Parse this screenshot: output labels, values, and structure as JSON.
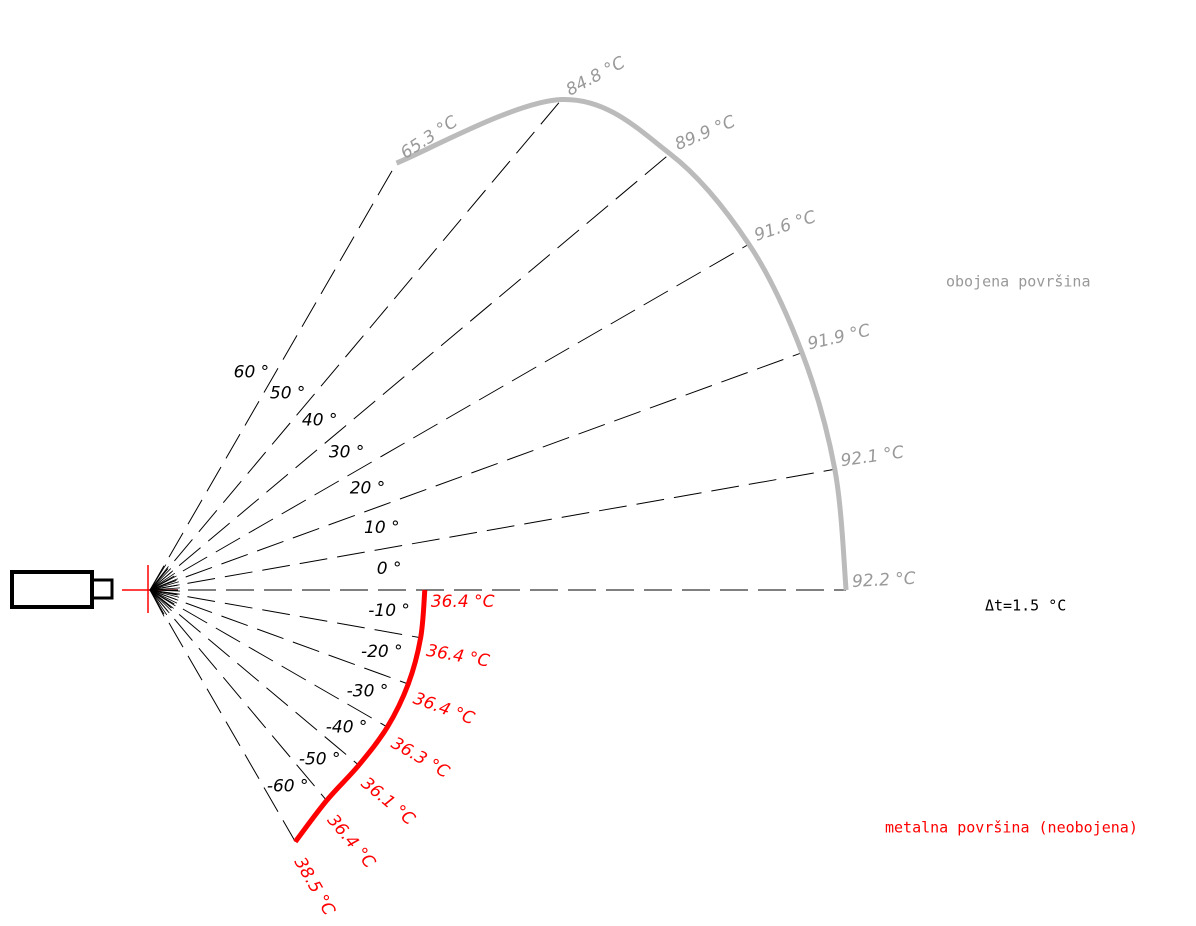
{
  "chart_data": {
    "type": "polar",
    "angle_ticks": [
      {
        "value": 60,
        "label": "60 °"
      },
      {
        "value": 50,
        "label": "50 °"
      },
      {
        "value": 40,
        "label": "40 °"
      },
      {
        "value": 30,
        "label": "30 °"
      },
      {
        "value": 20,
        "label": "20 °"
      },
      {
        "value": 10,
        "label": "10 °"
      },
      {
        "value": 0,
        "label": "0 °"
      },
      {
        "value": -10,
        "label": "-10 °"
      },
      {
        "value": -20,
        "label": "-20 °"
      },
      {
        "value": -30,
        "label": "-30 °"
      },
      {
        "value": -40,
        "label": "-40 °"
      },
      {
        "value": -50,
        "label": "-50 °"
      },
      {
        "value": -60,
        "label": "-60 °"
      }
    ],
    "series": [
      {
        "name": "obojena površina",
        "color": "#bbbbbb",
        "x": [
          60,
          50,
          40,
          30,
          20,
          10,
          0
        ],
        "values": [
          65.3,
          84.8,
          89.9,
          91.6,
          91.9,
          92.1,
          92.2
        ],
        "value_labels": [
          "65.3 °C",
          "84.8 °C",
          "89.9 °C",
          "91.6 °C",
          "91.9 °C",
          "92.1 °C",
          "92.2 °C"
        ]
      },
      {
        "name": "metalna površina (neobojena)",
        "color": "#ff0000",
        "x": [
          0,
          -10,
          -20,
          -30,
          -40,
          -50,
          -60
        ],
        "values": [
          36.4,
          36.4,
          36.4,
          36.3,
          36.1,
          36.4,
          38.5
        ],
        "value_labels": [
          "36.4 °C",
          "36.4 °C",
          "36.4 °C",
          "36.3 °C",
          "36.1 °C",
          "36.4 °C",
          "38.5 °C"
        ]
      }
    ],
    "annotation": "Δt=1.5 °C"
  }
}
